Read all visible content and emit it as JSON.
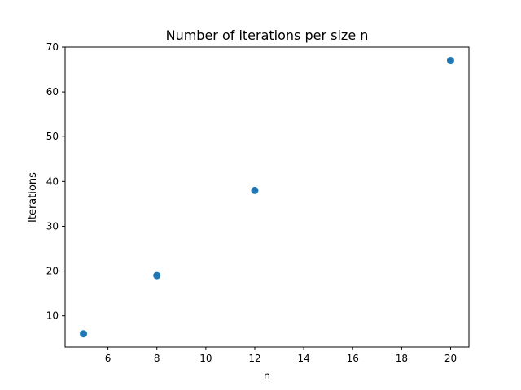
{
  "chart_data": {
    "type": "scatter",
    "title": "Number of iterations per size n",
    "xlabel": "n",
    "ylabel": "Iterations",
    "x": [
      5,
      8,
      12,
      20
    ],
    "y": [
      6,
      19,
      38,
      67
    ],
    "xlim": [
      4.25,
      20.75
    ],
    "ylim": [
      3.05,
      70
    ],
    "xticks": [
      6,
      8,
      10,
      12,
      14,
      16,
      18,
      20
    ],
    "yticks": [
      10,
      20,
      30,
      40,
      50,
      60,
      70
    ],
    "grid": false,
    "legend": "none",
    "marker_color": "#1f77b4"
  }
}
